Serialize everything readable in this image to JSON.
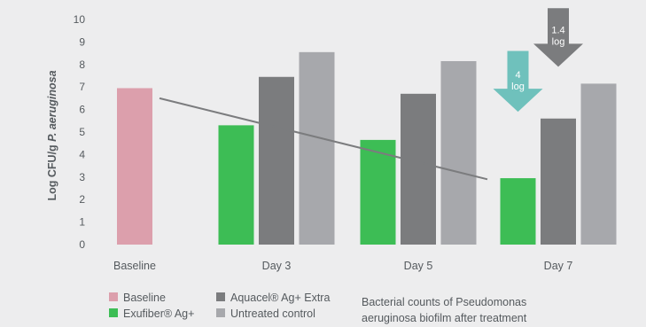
{
  "chart_data": {
    "type": "bar",
    "ylabel_main": "Log CFU/g ",
    "ylabel_species": "P. aeruginosa",
    "ylim": [
      0,
      10
    ],
    "yticks": [
      0,
      1,
      2,
      3,
      4,
      5,
      6,
      7,
      8,
      9,
      10
    ],
    "grid": false,
    "categories": [
      "Baseline",
      "Day 3",
      "Day 5",
      "Day 7"
    ],
    "series": [
      {
        "name": "Baseline",
        "color": "#dc9fac",
        "values": [
          6.95,
          null,
          null,
          null
        ]
      },
      {
        "name": "Exufiber® Ag+",
        "color": "#3dbd55",
        "values": [
          null,
          5.3,
          4.65,
          2.95
        ]
      },
      {
        "name": "Aquacel® Ag+ Extra",
        "color": "#7b7c7e",
        "values": [
          null,
          7.45,
          6.7,
          5.6
        ]
      },
      {
        "name": "Untreated control",
        "color": "#a7a8ac",
        "values": [
          null,
          8.55,
          8.15,
          7.15
        ]
      }
    ],
    "trend_line": {
      "color": "#7b7c7e",
      "from": [
        "Baseline",
        6.5
      ],
      "to": [
        "Day 7",
        2.9
      ]
    },
    "annotations": [
      {
        "text_line1": "4",
        "text_line2": "log",
        "color": "#6fc1bc",
        "category": "Day 7",
        "from_value": 8.6,
        "to_value": 5.9
      },
      {
        "text_line1": "1.4",
        "text_line2": "log",
        "color": "#7b7c7e",
        "category": "Day 7",
        "from_value": 10.5,
        "to_value": 7.9
      }
    ],
    "legend_position": "bottom-left",
    "caption_line1": "Bacterial counts of Pseudomonas",
    "caption_line2": "aeruginosa biofilm after treatment"
  }
}
